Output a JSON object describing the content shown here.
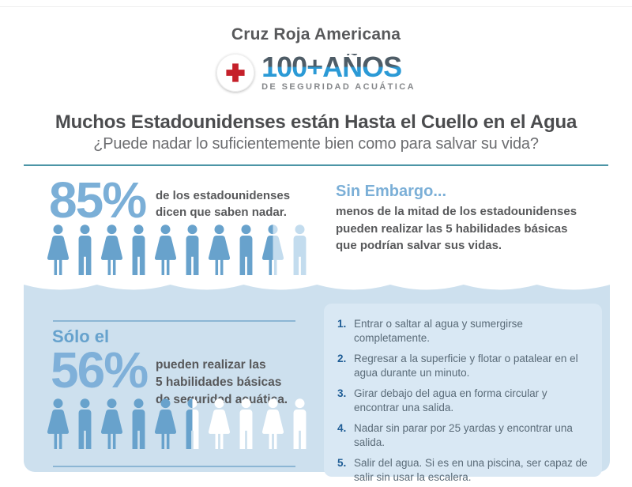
{
  "header": {
    "org": "Cruz Roja Americana",
    "logo": {
      "years": "100+AÑOS",
      "tagline": "DE SEGURIDAD ACUÁTICA"
    }
  },
  "headline": "Muchos Estadounidenses están Hasta el Cuello en el Agua",
  "subheadline": "¿Puede nadar lo suficientemente bien como para salvar su vida?",
  "top_stat": {
    "value": "85%",
    "caption_lines": [
      "de los estadounidenses",
      "dicen que saben nadar."
    ]
  },
  "however": {
    "title": "Sin Embargo...",
    "lines": [
      "menos de la mitad de los estadounidenses",
      "pueden realizar las 5 habilidades básicas",
      "que podrían salvar sus vidas."
    ]
  },
  "bottom_stat": {
    "prefix": "Sólo el",
    "value": "56%",
    "caption_lines": [
      "pueden realizar las",
      "5 habilidades básicas",
      "de seguridad acuática."
    ]
  },
  "skills": [
    {
      "num": "1.",
      "text": "Entrar o saltar al agua y sumergirse completamente."
    },
    {
      "num": "2.",
      "text": "Regresar a la superficie y flotar o patalear en el agua durante un minuto."
    },
    {
      "num": "3.",
      "text": "Girar debajo del agua en forma circular y encontrar una salida."
    },
    {
      "num": "4.",
      "text": "Nadar sin parar por 25 yardas y encontrar una salida."
    },
    {
      "num": "5.",
      "text": "Salir del agua. Si es en una piscina, ser capaz de salir sin usar la escalera."
    }
  ],
  "colors": {
    "icon_blue": "#68a2cc",
    "icon_pale": "#c3dcee",
    "icon_white": "#ffffff",
    "accent_light_blue": "#7bafd7",
    "accent_medium_blue": "#66a2cd",
    "water_bg": "#cde0ee",
    "panel_bg": "#d9e8f4",
    "divider_teal": "#4c95a6",
    "thin_line_blue": "#8cb6d4",
    "number_blue": "#1e5c95",
    "dark_text": "#58595b",
    "red_cross": "#c5202a",
    "logo_top": "#4e5c66",
    "logo_bottom": "#2b9ad6"
  },
  "chart_data": [
    {
      "type": "pictograph",
      "title": "85% de los estadounidenses dicen que saben nadar.",
      "value_pct": 85,
      "icons_total": 10,
      "icons_filled": 8.5,
      "empty_color_key": "icon_pale",
      "icons": [
        {
          "figure": "woman",
          "fill": "filled"
        },
        {
          "figure": "man",
          "fill": "filled"
        },
        {
          "figure": "woman",
          "fill": "filled"
        },
        {
          "figure": "man",
          "fill": "filled"
        },
        {
          "figure": "woman",
          "fill": "filled"
        },
        {
          "figure": "man",
          "fill": "filled"
        },
        {
          "figure": "woman",
          "fill": "filled"
        },
        {
          "figure": "man",
          "fill": "filled"
        },
        {
          "figure": "woman",
          "fill": "half"
        },
        {
          "figure": "man",
          "fill": "empty"
        }
      ]
    },
    {
      "type": "pictograph",
      "title": "Sólo el 56% pueden realizar las 5 habilidades básicas de seguridad acuática.",
      "value_pct": 56,
      "icons_total": 10,
      "icons_filled": 5.5,
      "empty_color_key": "icon_white",
      "icons": [
        {
          "figure": "woman",
          "fill": "filled"
        },
        {
          "figure": "man",
          "fill": "filled"
        },
        {
          "figure": "woman",
          "fill": "filled"
        },
        {
          "figure": "man",
          "fill": "filled"
        },
        {
          "figure": "woman",
          "fill": "filled"
        },
        {
          "figure": "man",
          "fill": "half"
        },
        {
          "figure": "woman",
          "fill": "empty"
        },
        {
          "figure": "man",
          "fill": "empty"
        },
        {
          "figure": "woman",
          "fill": "empty"
        },
        {
          "figure": "man",
          "fill": "empty"
        }
      ]
    }
  ]
}
